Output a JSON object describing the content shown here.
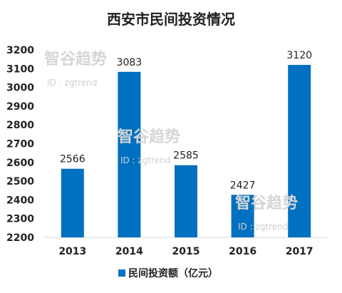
{
  "chart_data": {
    "type": "bar",
    "title": "西安市民间投资情况",
    "categories": [
      "2013",
      "2014",
      "2015",
      "2016",
      "2017"
    ],
    "series": [
      {
        "name": "民间投资额（亿元）",
        "values": [
          2566,
          3083,
          2585,
          2427,
          3120
        ],
        "color": "#0070C0"
      }
    ],
    "data_labels": [
      "2566",
      "3083",
      "2585",
      "2427",
      "3120"
    ],
    "xlabel": "",
    "ylabel": "",
    "ylim": [
      2200,
      3200
    ],
    "yticks": [
      2200,
      2300,
      2400,
      2500,
      2600,
      2700,
      2800,
      2900,
      3000,
      3100,
      3200
    ],
    "grid": false,
    "legend_position": "bottom"
  },
  "watermark": {
    "text": "智谷趋势",
    "sub": "ID : zgtrend"
  }
}
